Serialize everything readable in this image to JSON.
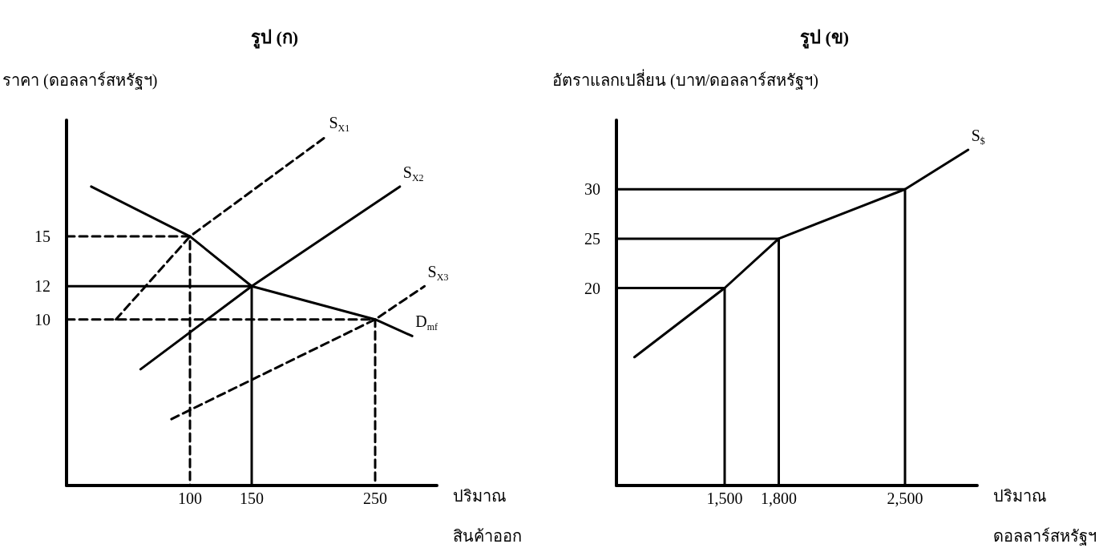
{
  "chart_data": [
    {
      "type": "line",
      "title": "รูป (ก)",
      "ylabel": "ราคา (ดอลลาร์สหรัฐฯ)",
      "xlabel": "ปริมาณ\nสินค้าออก",
      "xlim": [
        0,
        300
      ],
      "ylim": [
        0,
        22
      ],
      "xticks": [
        100,
        150,
        250
      ],
      "yticks": [
        10,
        12,
        15
      ],
      "marker": "none",
      "series": [
        {
          "name": "S$_{X1}$",
          "color": "#000000",
          "line_style": "dashed",
          "x": [
            40,
            100,
            210
          ],
          "values": [
            10,
            15,
            21
          ]
        },
        {
          "name": "S$_{X2}$",
          "color": "#000000",
          "line_style": "solid",
          "x": [
            60,
            150,
            270
          ],
          "values": [
            7,
            12,
            18
          ]
        },
        {
          "name": "S$_{X3}$",
          "color": "#000000",
          "line_style": "dashed",
          "x": [
            85,
            250,
            290
          ],
          "values": [
            4,
            10,
            12
          ]
        },
        {
          "name": "D$_{mf}$",
          "color": "#000000",
          "line_style": "solid",
          "x": [
            20,
            100,
            150,
            250,
            280
          ],
          "values": [
            18,
            15,
            12,
            10,
            9
          ]
        },
        {
          "color": "#000000",
          "line_style": "dashed",
          "x": [
            0,
            100,
            100
          ],
          "values": [
            15,
            15,
            0
          ]
        },
        {
          "color": "#000000",
          "line_style": "solid",
          "x": [
            0,
            150,
            150
          ],
          "values": [
            12,
            12,
            0
          ]
        },
        {
          "color": "#000000",
          "line_style": "dashed",
          "x": [
            0,
            250,
            250
          ],
          "values": [
            10,
            10,
            0
          ]
        }
      ]
    },
    {
      "type": "line",
      "title": "รูป (ข)",
      "ylabel": "อัตราแลกเปลี่ยน (บาท/ดอลลาร์สหรัฐฯ)",
      "xlabel": "ปริมาณ\nดอลลาร์สหรัฐฯ",
      "xlim": [
        900,
        2900
      ],
      "ylim": [
        0,
        37
      ],
      "xticks": [
        {
          "value": 1500,
          "label": "1,500"
        },
        {
          "value": 1800,
          "label": "1,800"
        },
        {
          "value": 2500,
          "label": "2,500"
        }
      ],
      "yticks": [
        20,
        25,
        30
      ],
      "marker": "none",
      "series": [
        {
          "name": "S$_{$}$",
          "color": "#000000",
          "line_style": "solid",
          "x": [
            1000,
            1500,
            1800,
            2500,
            2850
          ],
          "values": [
            13,
            20,
            25,
            30,
            34
          ]
        },
        {
          "color": "#000000",
          "line_style": "solid",
          "x": [
            900,
            1500,
            1500
          ],
          "values": [
            20,
            20,
            0
          ]
        },
        {
          "color": "#000000",
          "line_style": "solid",
          "x": [
            900,
            1800,
            1800
          ],
          "values": [
            25,
            25,
            0
          ]
        },
        {
          "color": "#000000",
          "line_style": "solid",
          "x": [
            900,
            2500,
            2500
          ],
          "values": [
            30,
            30,
            0
          ]
        }
      ]
    }
  ]
}
